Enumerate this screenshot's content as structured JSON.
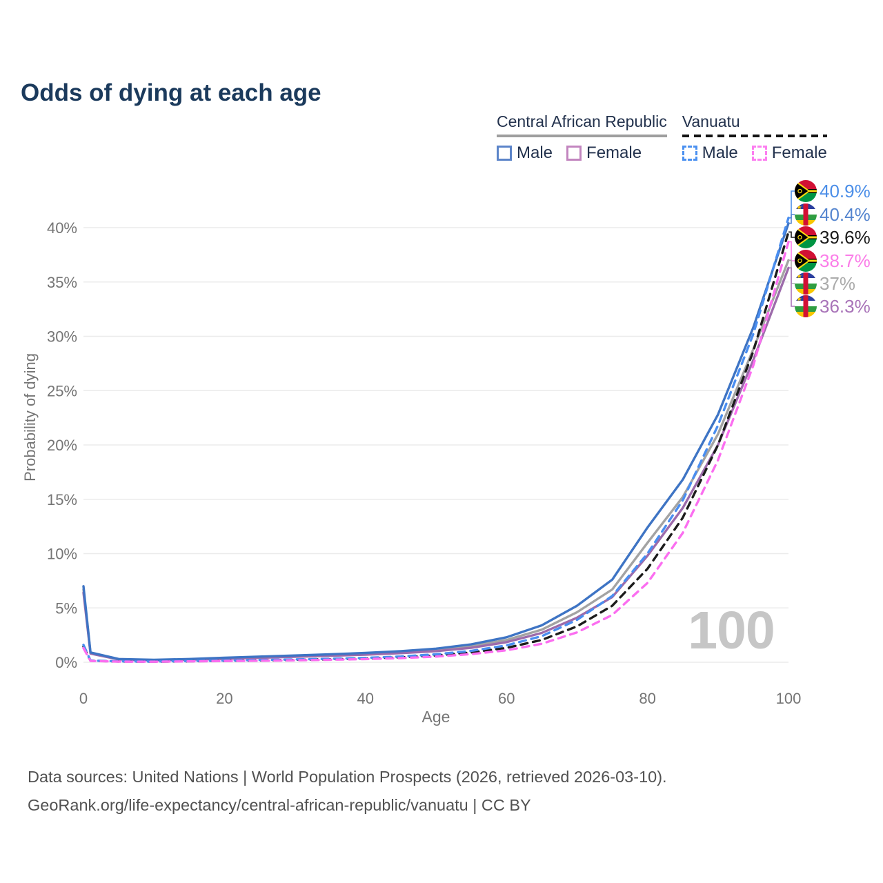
{
  "title": "Odds of dying at each age",
  "legend": {
    "groups": [
      {
        "name": "Central African Republic",
        "line_style": "solid",
        "underline_color": "#9e9e9e",
        "items": [
          {
            "label": "Male",
            "color": "#5b84c9",
            "dashed": false
          },
          {
            "label": "Female",
            "color": "#c285bf",
            "dashed": false
          }
        ]
      },
      {
        "name": "Vanuatu",
        "line_style": "dashed",
        "underline_color": "#141414",
        "items": [
          {
            "label": "Male",
            "color": "#4a90f0",
            "dashed": true
          },
          {
            "label": "Female",
            "color": "#fc7ef0",
            "dashed": true
          }
        ]
      }
    ]
  },
  "chart_data": {
    "type": "line",
    "title": "Odds of dying at each age",
    "xlabel": "Age",
    "ylabel": "Probability of dying",
    "xlim": [
      0,
      100
    ],
    "ylim_pct": [
      0,
      42
    ],
    "grid": "horizontal",
    "legend_position": "top-right",
    "age_counter_label": "100",
    "xticks": [
      0,
      20,
      40,
      60,
      80,
      100
    ],
    "xtick_labels": [
      "0",
      "20",
      "40",
      "60",
      "80",
      "100"
    ],
    "yticks": [
      0,
      5,
      10,
      15,
      20,
      25,
      30,
      35,
      40
    ],
    "ytick_labels": [
      "0%",
      "5%",
      "10%",
      "15%",
      "20%",
      "25%",
      "30%",
      "35%",
      "40%"
    ],
    "x": [
      0,
      1,
      5,
      10,
      15,
      20,
      25,
      30,
      35,
      40,
      45,
      50,
      55,
      60,
      65,
      70,
      75,
      80,
      85,
      90,
      95,
      100
    ],
    "series": [
      {
        "id": "car-both",
        "name": "Central African Republic — Both sexes",
        "color": "#a3a3a3",
        "dashed": false,
        "values_pct": [
          6.7,
          0.85,
          0.28,
          0.2,
          0.27,
          0.37,
          0.46,
          0.55,
          0.65,
          0.78,
          0.93,
          1.12,
          1.48,
          2.05,
          3.0,
          4.6,
          6.7,
          11.0,
          15.2,
          21.0,
          28.8,
          37.0
        ]
      },
      {
        "id": "car-female",
        "name": "Central African Republic — Female",
        "color": "#9d6bab",
        "dashed": false,
        "values_pct": [
          6.4,
          0.8,
          0.26,
          0.19,
          0.24,
          0.32,
          0.41,
          0.5,
          0.59,
          0.7,
          0.84,
          1.02,
          1.33,
          1.85,
          2.7,
          4.1,
          6.0,
          9.8,
          14.2,
          20.0,
          27.8,
          36.3
        ]
      },
      {
        "id": "car-male",
        "name": "Central African Republic — Male",
        "color": "#3e74c4",
        "dashed": false,
        "values_pct": [
          7.0,
          0.9,
          0.3,
          0.22,
          0.3,
          0.42,
          0.52,
          0.62,
          0.73,
          0.86,
          1.02,
          1.25,
          1.65,
          2.3,
          3.4,
          5.2,
          7.6,
          12.4,
          16.8,
          22.8,
          30.8,
          40.4
        ]
      },
      {
        "id": "vut-both",
        "name": "Vanuatu — Both sexes",
        "color": "#1c1c1c",
        "dashed": true,
        "values_pct": [
          1.45,
          0.14,
          0.07,
          0.06,
          0.09,
          0.13,
          0.17,
          0.22,
          0.27,
          0.34,
          0.45,
          0.62,
          0.9,
          1.32,
          2.05,
          3.3,
          5.2,
          8.6,
          13.3,
          20.0,
          28.6,
          39.6
        ]
      },
      {
        "id": "vut-male",
        "name": "Vanuatu — Male",
        "color": "#4a8ef0",
        "dashed": true,
        "values_pct": [
          1.6,
          0.16,
          0.08,
          0.07,
          0.11,
          0.16,
          0.21,
          0.26,
          0.32,
          0.4,
          0.53,
          0.73,
          1.05,
          1.55,
          2.4,
          3.9,
          6.1,
          10.0,
          14.9,
          21.8,
          30.2,
          40.9
        ]
      },
      {
        "id": "vut-female",
        "name": "Vanuatu — Female",
        "color": "#fb6ef0",
        "dashed": true,
        "values_pct": [
          1.3,
          0.12,
          0.06,
          0.05,
          0.08,
          0.11,
          0.14,
          0.18,
          0.23,
          0.29,
          0.38,
          0.52,
          0.75,
          1.1,
          1.7,
          2.75,
          4.35,
          7.3,
          11.9,
          18.6,
          27.3,
          38.7
        ]
      }
    ],
    "end_labels": [
      {
        "series": "vut-male",
        "country": "Vanuatu",
        "flag": "vut",
        "value": "40.9%",
        "color": "#4b8ee8",
        "end_pct": 40.9
      },
      {
        "series": "car-male",
        "country": "Central African Republic",
        "flag": "caf",
        "value": "40.4%",
        "color": "#5585cf",
        "end_pct": 40.4
      },
      {
        "series": "vut-both",
        "country": "Vanuatu",
        "flag": "vut",
        "value": "39.6%",
        "color": "#1a1a1a",
        "end_pct": 39.6
      },
      {
        "series": "vut-female",
        "country": "Vanuatu",
        "flag": "vut",
        "value": "38.7%",
        "color": "#fb7ce8",
        "end_pct": 38.7
      },
      {
        "series": "car-both",
        "country": "Central African Republic",
        "flag": "caf",
        "value": "37%",
        "color": "#ababab",
        "end_pct": 37.0
      },
      {
        "series": "car-female",
        "country": "Central African Republic",
        "flag": "caf",
        "value": "36.3%",
        "color": "#a873b8",
        "end_pct": 36.3
      }
    ]
  },
  "footer": {
    "line1": "Data sources: United Nations | World Population Prospects (2026, retrieved 2026-03-10).",
    "line2": "GeoRank.org/life-expectancy/central-african-republic/vanuatu | CC BY"
  }
}
